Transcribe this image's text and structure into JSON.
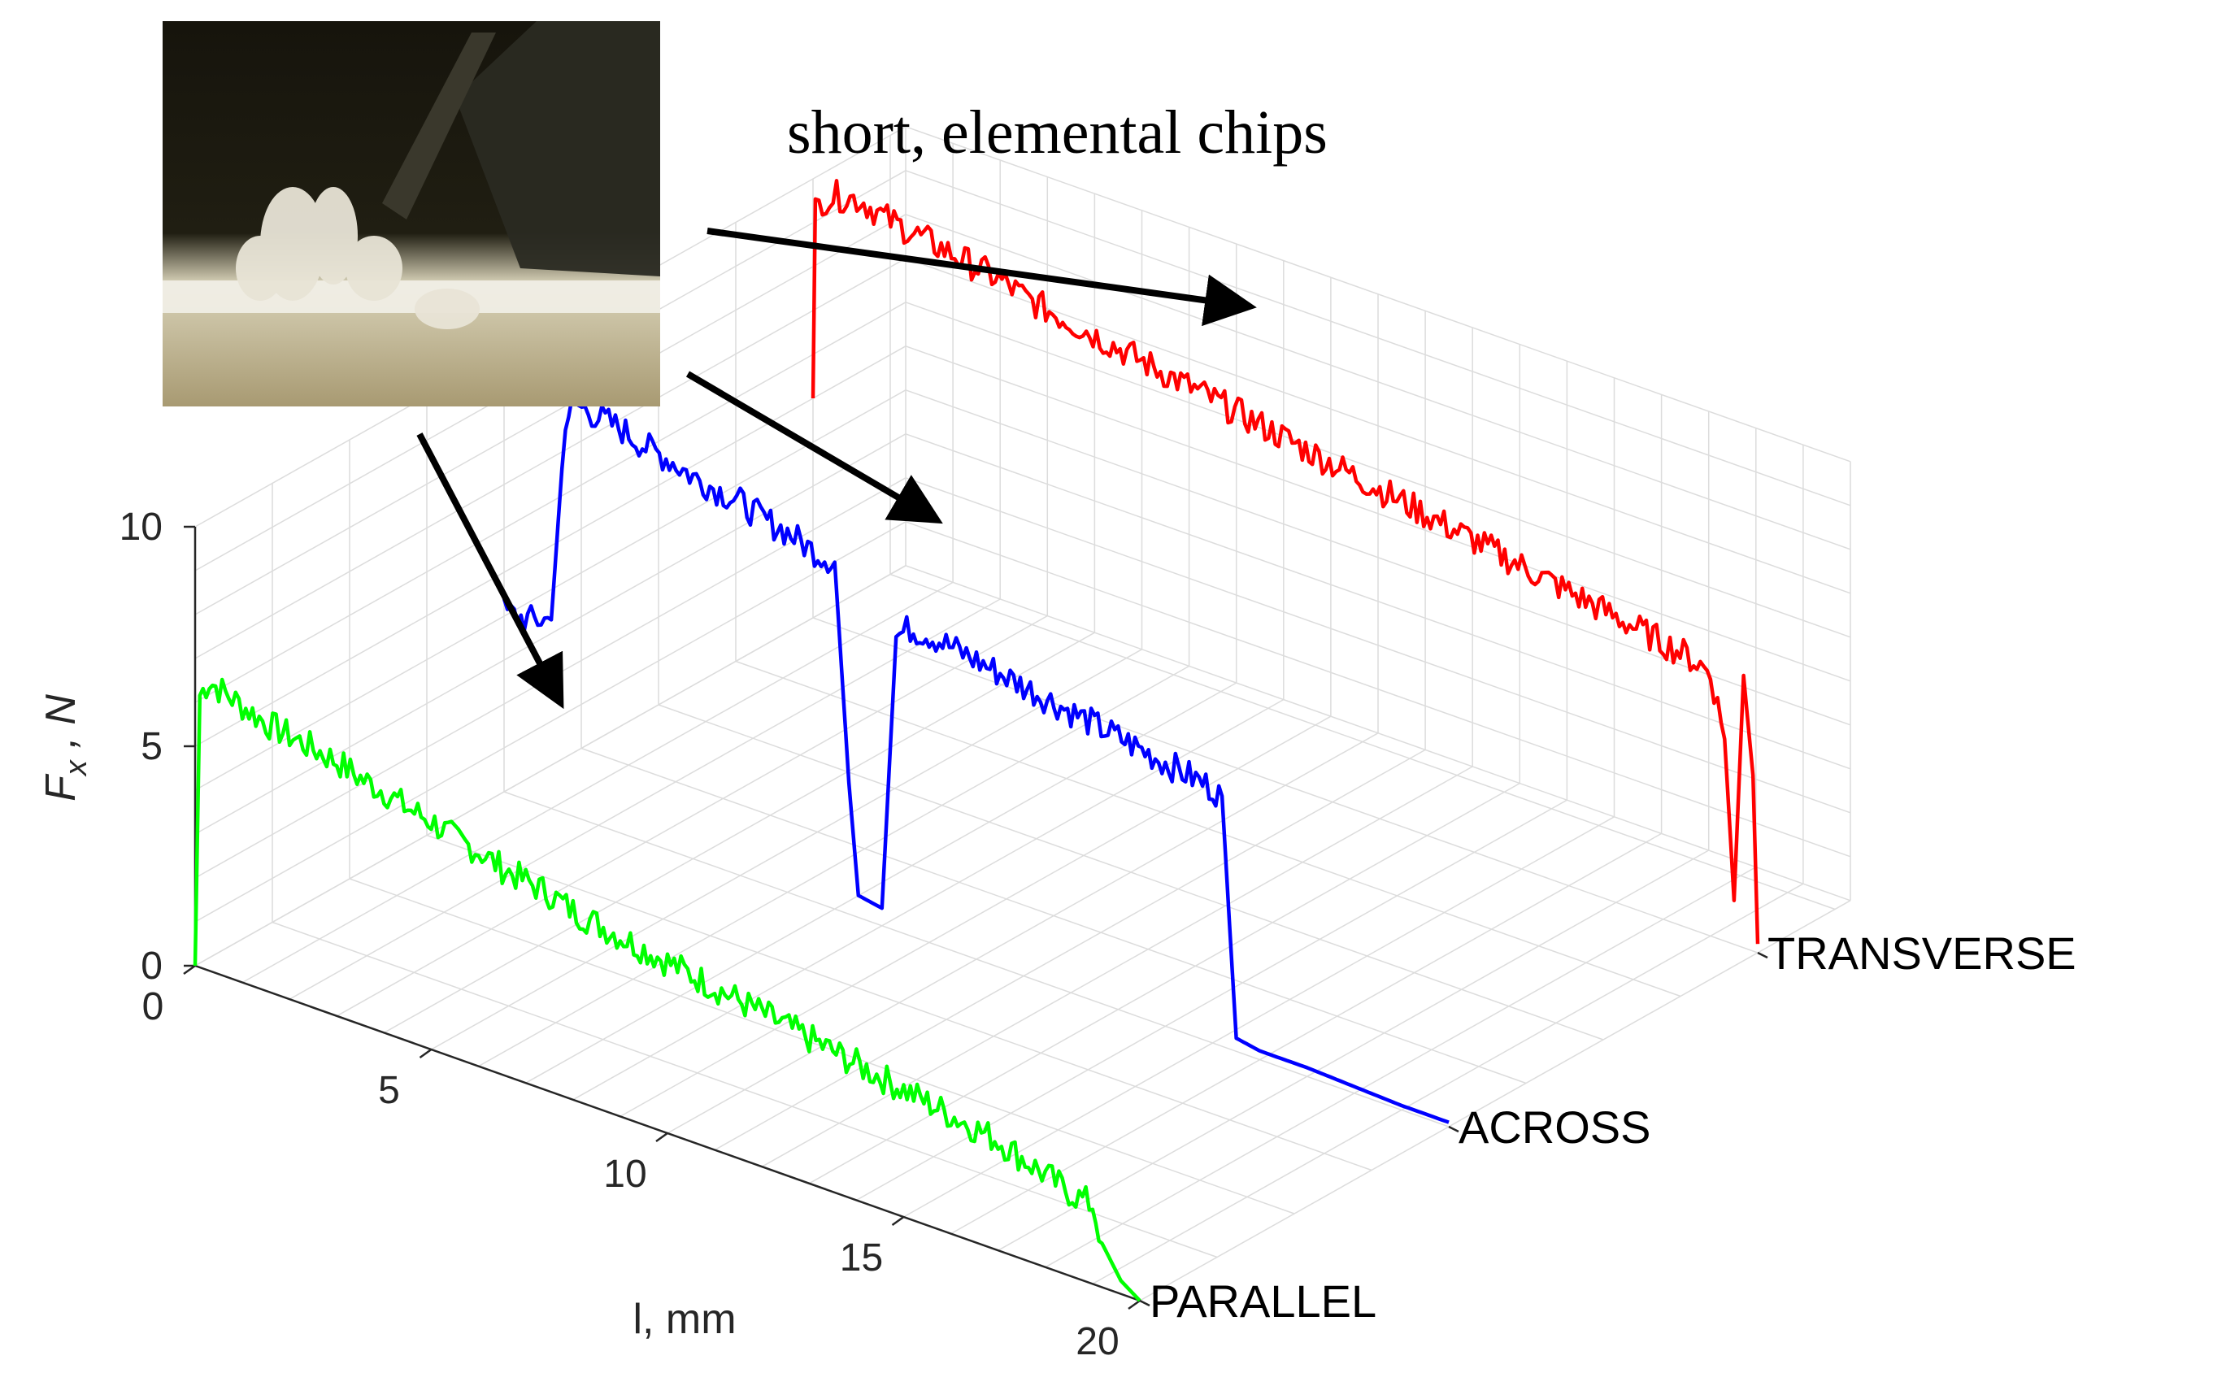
{
  "annotation": "short, elemental chips",
  "photo": {
    "description": "photo of short, elemental wood chips at cutting edge"
  },
  "chart_data": {
    "type": "line",
    "view": "3d-ribbon",
    "xlabel": "l, mm",
    "ylabel": "F_x , N",
    "ylabel_main": "F",
    "ylabel_sub": "x",
    "ylabel_rest": " , N",
    "xlim": [
      0,
      20
    ],
    "ylim": [
      0,
      10
    ],
    "x_ticks": [
      "0",
      "5",
      "10",
      "15",
      "20"
    ],
    "y_ticks": [
      "0",
      "5",
      "10"
    ],
    "grid": true,
    "series": [
      {
        "name": "PARALLEL",
        "color": "#00ff00",
        "x": [
          0,
          0.1,
          0.3,
          0.5,
          1,
          1.5,
          2,
          2.5,
          3,
          3.5,
          4,
          4.5,
          5,
          5.5,
          6,
          6.5,
          7,
          7.5,
          8,
          8.5,
          9,
          9.5,
          10,
          10.5,
          11,
          11.5,
          12,
          12.5,
          13,
          13.5,
          14,
          14.5,
          15,
          15.5,
          16,
          16.5,
          17,
          17.5,
          18,
          18.5,
          19,
          19.2,
          19.6,
          20
        ],
        "y": [
          0,
          6.2,
          6.6,
          6.5,
          6.3,
          6.1,
          6.0,
          5.9,
          5.8,
          5.6,
          5.5,
          5.3,
          5.2,
          5.0,
          4.9,
          4.7,
          4.6,
          4.5,
          4.3,
          4.2,
          4.1,
          4.0,
          3.9,
          3.8,
          3.7,
          3.6,
          3.5,
          3.4,
          3.3,
          3.2,
          3.1,
          3.0,
          2.9,
          2.8,
          2.7,
          2.6,
          2.5,
          2.3,
          2.1,
          1.9,
          1.8,
          1.0,
          0.3,
          0
        ]
      },
      {
        "name": "ACROSS",
        "color": "#0000ff",
        "x": [
          0,
          0.5,
          1,
          1.3,
          1.5,
          2,
          2.5,
          3,
          3.5,
          4,
          4.5,
          5,
          5.5,
          6,
          6.5,
          7,
          7.3,
          7.5,
          8,
          8.3,
          8.6,
          9,
          9.5,
          10,
          10.5,
          11,
          11.5,
          12,
          12.5,
          13,
          13.5,
          14,
          14.5,
          15,
          15.2,
          15.5,
          16,
          17,
          18,
          19,
          20
        ],
        "y": [
          4.1,
          4.1,
          4.3,
          9.0,
          9.4,
          9.3,
          9.2,
          9.0,
          8.9,
          8.7,
          8.6,
          8.5,
          8.3,
          8.2,
          8.0,
          7.9,
          3.0,
          0.5,
          0.4,
          6.7,
          7.0,
          7.0,
          6.9,
          6.8,
          6.7,
          6.6,
          6.5,
          6.4,
          6.3,
          6.2,
          6.1,
          6.0,
          5.9,
          5.8,
          5.7,
          0.3,
          0.2,
          0.2,
          0.15,
          0.1,
          0.1
        ]
      },
      {
        "name": "TRANSVERSE",
        "color": "#ff0000",
        "x": [
          0,
          0.05,
          0.2,
          0.5,
          1,
          1.5,
          2,
          2.5,
          3,
          3.5,
          4,
          4.5,
          5,
          5.5,
          6,
          6.5,
          7,
          7.5,
          8,
          8.5,
          9,
          9.5,
          10,
          10.5,
          11,
          11.5,
          12,
          12.5,
          13,
          13.5,
          14,
          14.5,
          15,
          15.5,
          16,
          16.5,
          17,
          17.5,
          18,
          18.5,
          19,
          19.3,
          19.5,
          19.7,
          19.9,
          20
        ],
        "y": [
          5.0,
          9.3,
          9.6,
          9.8,
          9.9,
          9.7,
          9.6,
          9.5,
          9.4,
          9.3,
          9.2,
          9.0,
          8.9,
          8.8,
          8.7,
          8.6,
          8.5,
          8.4,
          8.3,
          8.2,
          8.1,
          8.0,
          7.9,
          7.8,
          7.7,
          7.6,
          7.5,
          7.4,
          7.3,
          7.2,
          7.1,
          7.0,
          6.9,
          6.8,
          6.7,
          6.6,
          6.5,
          6.4,
          6.3,
          6.2,
          6.0,
          4.6,
          1.0,
          6.2,
          4.0,
          0.2
        ]
      }
    ]
  }
}
